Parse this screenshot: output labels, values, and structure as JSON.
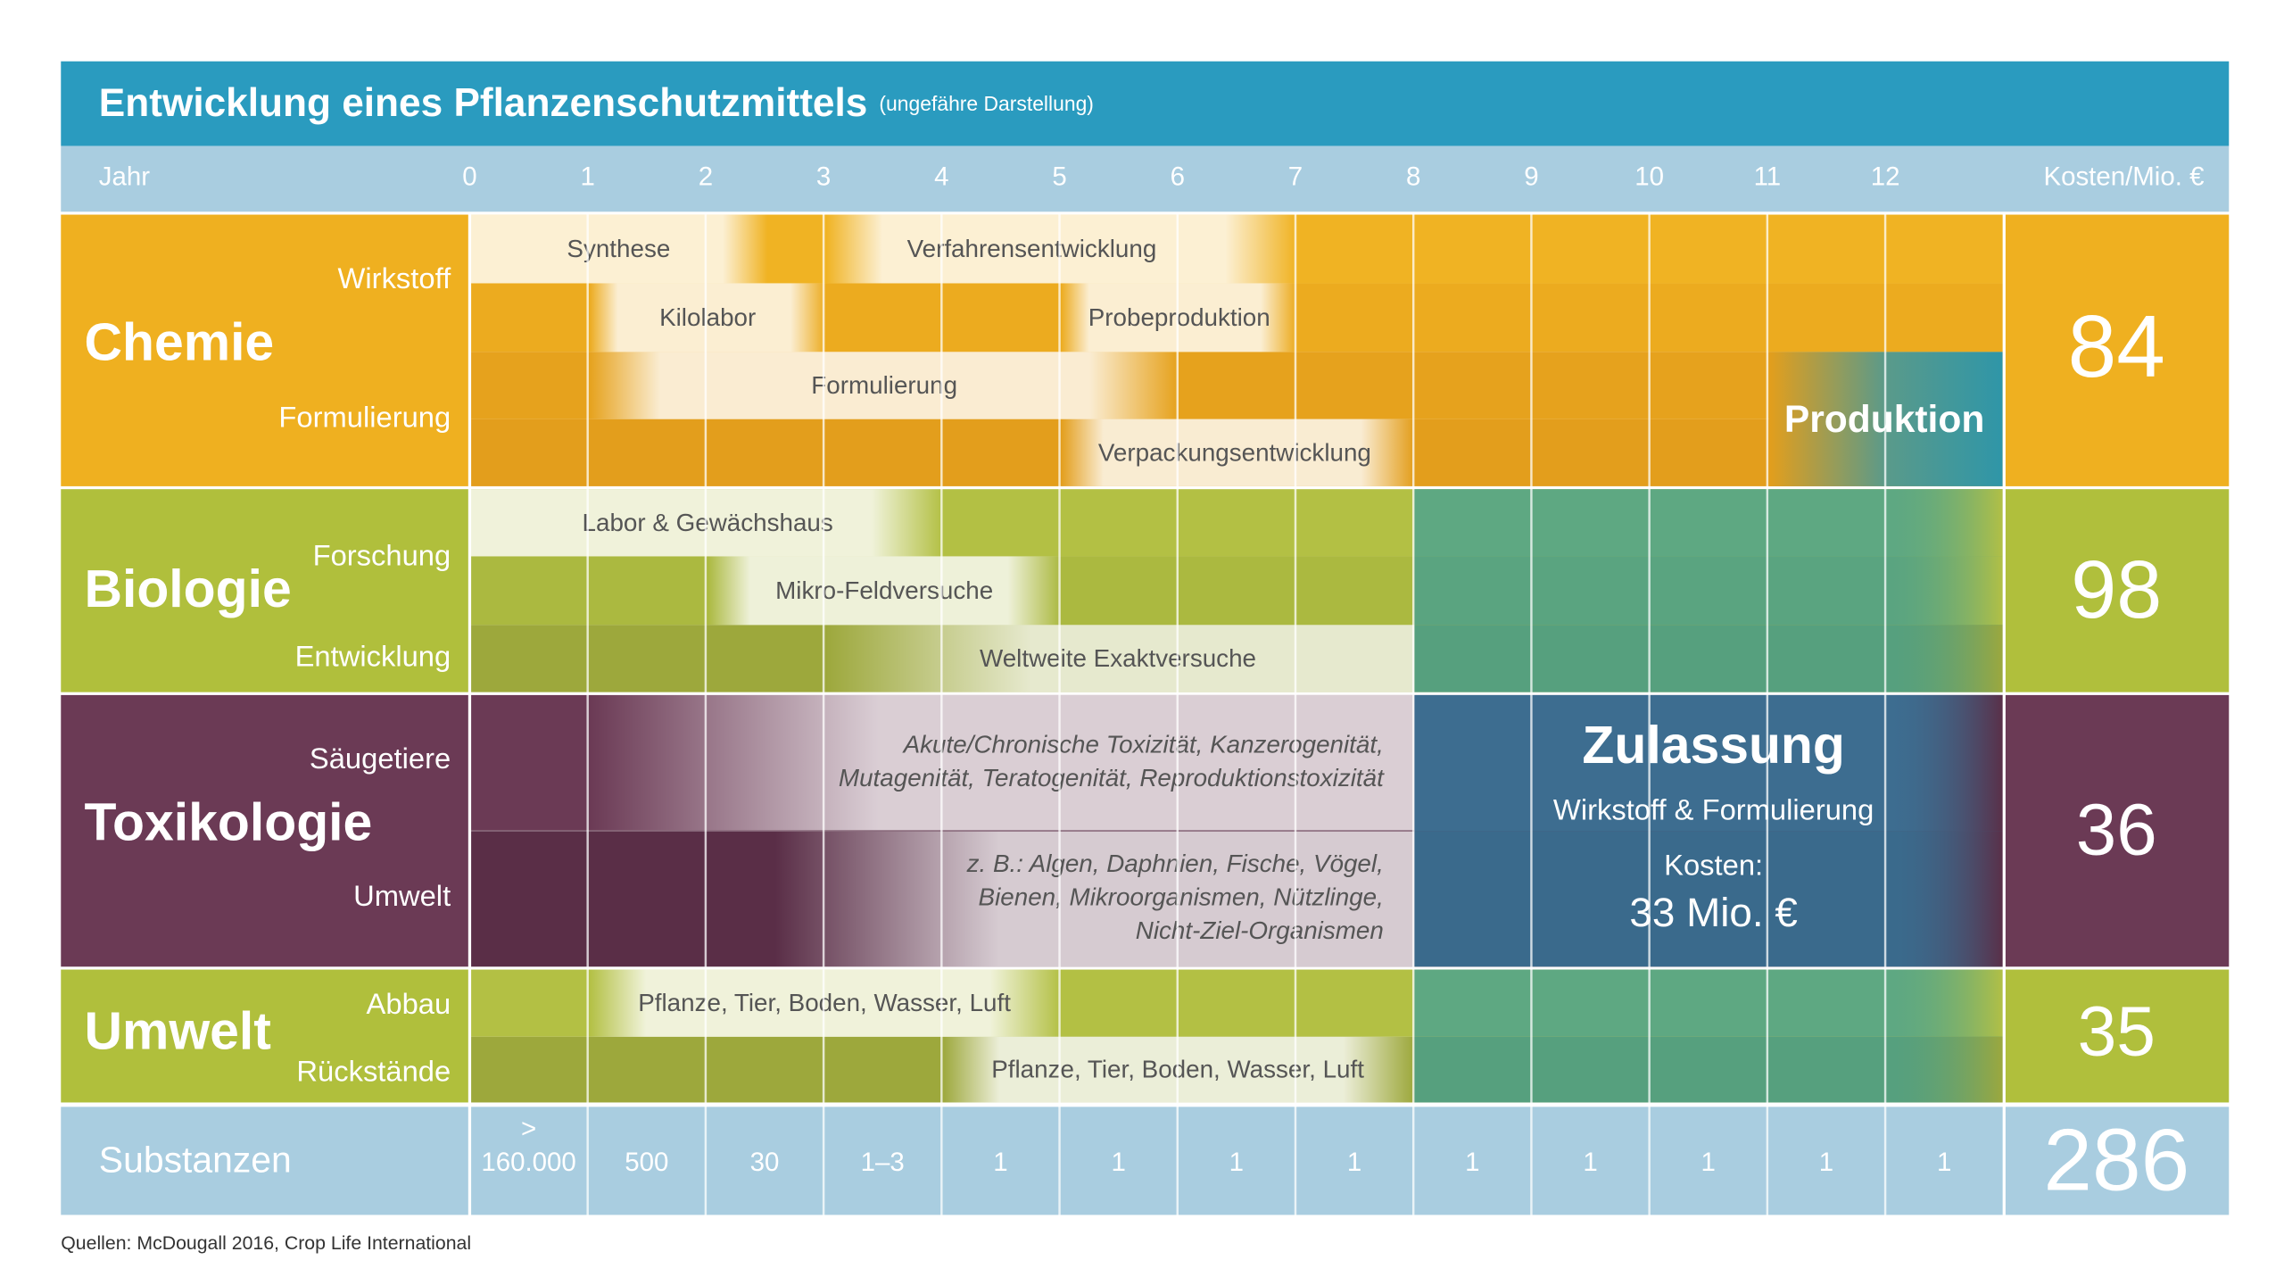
{
  "header": {
    "title": "Entwicklung eines Pflanzenschutzmittels",
    "subtitle": "(ungefähre Darstellung)"
  },
  "year_row": {
    "label": "Jahr",
    "years": [
      0,
      1,
      2,
      3,
      4,
      5,
      6,
      7,
      8,
      9,
      10,
      11,
      12
    ],
    "cost_label": "Kosten/Mio. €"
  },
  "sections": [
    {
      "name": "Chemie",
      "sublabels": [
        "Wirkstoff",
        "Formulierung"
      ],
      "cost": "84",
      "bars": [
        {
          "label": "Synthese"
        },
        {
          "label": "Verfahrensentwicklung"
        },
        {
          "label": "Kilolabor"
        },
        {
          "label": "Probeproduktion"
        },
        {
          "label": "Formulierung"
        },
        {
          "label": "Verpackungsentwicklung"
        }
      ],
      "highlight": "Produktion"
    },
    {
      "name": "Biologie",
      "sublabels": [
        "Forschung",
        "Entwicklung"
      ],
      "cost": "98",
      "bars": [
        {
          "label": "Labor & Gewächshaus"
        },
        {
          "label": "Mikro-Feldversuche"
        },
        {
          "label": "Weltweite Exaktversuche"
        }
      ]
    },
    {
      "name": "Toxikologie",
      "sublabels": [
        "Säugetiere",
        "Umwelt"
      ],
      "cost": "36",
      "bars": [
        {
          "lines": [
            "Akute/Chronische Toxizität, Kanzerogenität,",
            "Mutagenität, Teratogenität, Reproduktionstoxizität"
          ]
        },
        {
          "lines": [
            "z. B.: Algen, Daphnien, Fische, Vögel,",
            "Bienen, Mikroorganismen, Nützlinge,",
            "Nicht-Ziel-Organismen"
          ]
        }
      ]
    },
    {
      "name": "Umwelt",
      "sublabels": [
        "Abbau",
        "Rückstände"
      ],
      "cost": "35",
      "bars": [
        {
          "label": "Pflanze, Tier, Boden, Wasser, Luft"
        },
        {
          "label": "Pflanze, Tier, Boden, Wasser, Luft"
        }
      ]
    }
  ],
  "approval": {
    "title": "Zulassung",
    "subtitle": "Wirkstoff & Formulierung",
    "cost_label": "Kosten:",
    "cost": "33 Mio. €"
  },
  "substances": {
    "label": "Substanzen",
    "values": [
      "> 160.000",
      "500",
      "30",
      "1–3",
      "1",
      "1",
      "1",
      "1",
      "1",
      "1",
      "1",
      "1",
      "1"
    ],
    "total": "286"
  },
  "source": "Quellen: McDougall 2016, Crop Life International"
}
